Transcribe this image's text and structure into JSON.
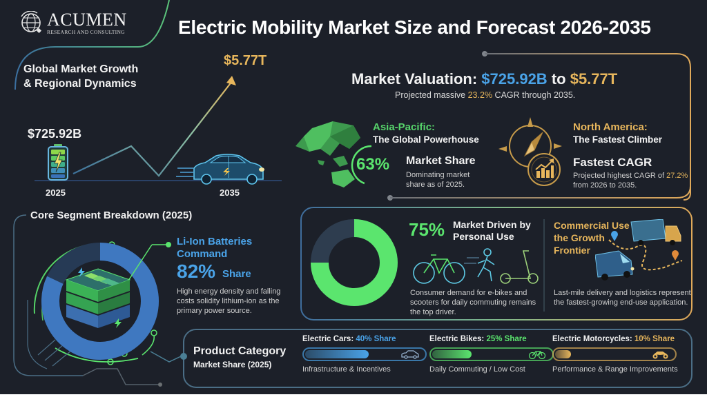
{
  "header": {
    "logo_name": "Acumen",
    "logo_sub": "RESEARCH AND CONSULTING",
    "title": "Electric Mobility Market Size and Forecast 2026-2035"
  },
  "growth": {
    "title_line1": "Global Market Growth",
    "title_line2": "& Regional Dynamics",
    "start_value": "$725.92B",
    "end_value": "$5.77T",
    "start_year": "2025",
    "end_year": "2035",
    "icons": [
      "battery-icon",
      "electric-car-icon",
      "growth-arrow-icon"
    ]
  },
  "valuation": {
    "prefix": "Market Valuation: ",
    "from": "$725.92B",
    "joiner": " to ",
    "to": "$5.77T",
    "sub_prefix": "Projected massive ",
    "cagr": "23.2%",
    "sub_suffix": " CAGR through 2035."
  },
  "asia_pacific": {
    "title": "Asia-Pacific:",
    "subtitle": "The Global Powerhouse",
    "percent": "63%",
    "label": "Market Share",
    "description": "Dominating market share as of 2025.",
    "share_value": 63
  },
  "north_america": {
    "title": "North America:",
    "subtitle": "The Fastest Climber",
    "label": "Fastest CAGR",
    "desc_prefix": "Projected highest CAGR of ",
    "cagr": "27.2%",
    "desc_suffix": " from 2026 to 2035."
  },
  "core_segment": {
    "title": "Core Segment Breakdown (2025)",
    "headline": "Li-Ion Batteries Command",
    "percent": "82%",
    "share_label": "Share",
    "description": "High energy density and falling costs solidity lithium-ion as the primary power source.",
    "share_value": 82
  },
  "personal_use": {
    "percent": "75%",
    "title": "Market Driven by Personal Use",
    "description": "Consumer demand for e-bikes and scooters for daily commuting remains the top driver.",
    "share_value": 75
  },
  "commercial": {
    "title": "Commercial Use is the Growth Frontier",
    "description": "Last-mile delivery and logistics represent the fastest-growing end-use application."
  },
  "product_category": {
    "title": "Product Category",
    "subtitle": "Market Share (2025)",
    "items": [
      {
        "name": "Electric Cars: ",
        "share": "40% Share",
        "value": 40,
        "note": "Infrastructure & Incentives",
        "color": "#4aa3e8",
        "icon": "car-icon"
      },
      {
        "name": "Electric Bikes: ",
        "share": "25% Share",
        "value": 25,
        "note": "Daily Commuting / Low Cost",
        "color": "#5be56e",
        "icon": "bicycle-icon"
      },
      {
        "name": "Electric Motorcycles: ",
        "share": "10% Share",
        "value": 10,
        "note": "Performance & Range Improvements",
        "color": "#e7b65c",
        "icon": "motorcycle-icon"
      }
    ]
  },
  "colors": {
    "background": "#1c2029",
    "blue": "#4aa3e8",
    "green": "#5be56e",
    "gold": "#e7b65c"
  }
}
